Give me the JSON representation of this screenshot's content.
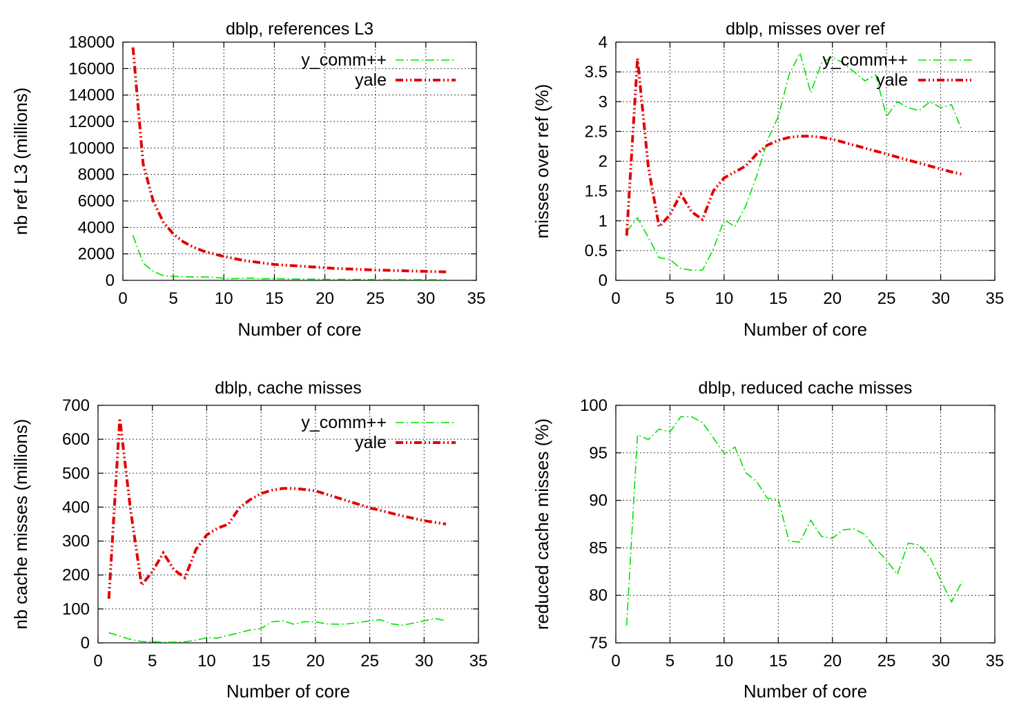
{
  "chart_data": [
    {
      "type": "line",
      "title": "dblp, references L3",
      "xlabel": "Number of core",
      "ylabel": "nb ref L3 (millions)",
      "xlim": [
        0,
        35
      ],
      "ylim": [
        0,
        18000
      ],
      "xticks": [
        "0",
        "5",
        "10",
        "15",
        "20",
        "25",
        "30",
        "35"
      ],
      "yticks": [
        "0",
        "2000",
        "4000",
        "6000",
        "8000",
        "10000",
        "12000",
        "14000",
        "16000",
        "18000"
      ],
      "grid": true,
      "legend_position": "top-right",
      "series": [
        {
          "name": "y_comm++",
          "color": "#00e000",
          "x": [
            1,
            2,
            3,
            4,
            5,
            6,
            7,
            8,
            9,
            10,
            11,
            12,
            13,
            14,
            15,
            16,
            17,
            18,
            19,
            20,
            21,
            22,
            23,
            24,
            25,
            26,
            27,
            28,
            29,
            30,
            31,
            32
          ],
          "y": [
            3400,
            1300,
            700,
            350,
            300,
            280,
            250,
            260,
            220,
            150,
            130,
            180,
            150,
            120,
            140,
            110,
            100,
            90,
            95,
            80,
            80,
            75,
            70,
            70,
            65,
            60,
            60,
            55,
            55,
            50,
            50,
            45
          ]
        },
        {
          "name": "yale",
          "color": "#e00000",
          "x": [
            1,
            2,
            3,
            4,
            5,
            6,
            7,
            8,
            9,
            10,
            11,
            12,
            13,
            14,
            15,
            16,
            17,
            18,
            19,
            20,
            21,
            22,
            23,
            24,
            25,
            26,
            27,
            28,
            29,
            30,
            31,
            32
          ],
          "y": [
            17600,
            8800,
            6000,
            4400,
            3500,
            2900,
            2500,
            2200,
            2000,
            1800,
            1650,
            1500,
            1400,
            1300,
            1200,
            1150,
            1100,
            1050,
            1000,
            950,
            900,
            870,
            840,
            810,
            780,
            760,
            740,
            720,
            700,
            680,
            660,
            640
          ]
        }
      ]
    },
    {
      "type": "line",
      "title": "dblp, misses over ref",
      "xlabel": "Number of core",
      "ylabel": "misses over ref (%)",
      "xlim": [
        0,
        35
      ],
      "ylim": [
        0,
        4
      ],
      "xticks": [
        "0",
        "5",
        "10",
        "15",
        "20",
        "25",
        "30",
        "35"
      ],
      "yticks": [
        "0",
        "0.5",
        "1",
        "1.5",
        "2",
        "2.5",
        "3",
        "3.5",
        "4"
      ],
      "grid": true,
      "legend_position": "top-right",
      "series": [
        {
          "name": "y_comm++",
          "color": "#00e000",
          "x": [
            1,
            2,
            3,
            4,
            5,
            6,
            7,
            8,
            9,
            10,
            11,
            12,
            13,
            14,
            15,
            16,
            17,
            18,
            19,
            20,
            21,
            22,
            23,
            24,
            25,
            26,
            27,
            28,
            29,
            30,
            31,
            32
          ],
          "y": [
            0.82,
            1.05,
            0.72,
            0.38,
            0.35,
            0.2,
            0.17,
            0.17,
            0.52,
            1.02,
            0.9,
            1.25,
            1.75,
            2.35,
            2.75,
            3.45,
            3.82,
            3.15,
            3.65,
            3.75,
            3.65,
            3.5,
            3.35,
            3.45,
            2.75,
            3.0,
            2.9,
            2.85,
            3.0,
            2.9,
            2.95,
            2.5
          ]
        },
        {
          "name": "yale",
          "color": "#e00000",
          "x": [
            1,
            2,
            3,
            4,
            5,
            6,
            7,
            8,
            9,
            10,
            11,
            12,
            13,
            14,
            15,
            16,
            17,
            18,
            19,
            20,
            21,
            22,
            23,
            24,
            25,
            26,
            27,
            28,
            29,
            30,
            31,
            32
          ],
          "y": [
            0.75,
            3.73,
            1.9,
            0.9,
            1.1,
            1.45,
            1.15,
            1.02,
            1.5,
            1.72,
            1.82,
            1.92,
            2.12,
            2.27,
            2.35,
            2.4,
            2.42,
            2.42,
            2.4,
            2.37,
            2.32,
            2.27,
            2.22,
            2.17,
            2.12,
            2.07,
            2.02,
            1.97,
            1.92,
            1.87,
            1.82,
            1.78
          ]
        }
      ]
    },
    {
      "type": "line",
      "title": "dblp, cache misses",
      "xlabel": "Number of core",
      "ylabel": "nb cache misses (millions)",
      "xlim": [
        0,
        35
      ],
      "ylim": [
        0,
        700
      ],
      "xticks": [
        "0",
        "5",
        "10",
        "15",
        "20",
        "25",
        "30",
        "35"
      ],
      "yticks": [
        "0",
        "100",
        "200",
        "300",
        "400",
        "500",
        "600",
        "700"
      ],
      "grid": true,
      "legend_position": "top-right",
      "series": [
        {
          "name": "y_comm++",
          "color": "#00e000",
          "x": [
            1,
            2,
            3,
            4,
            5,
            6,
            7,
            8,
            9,
            10,
            11,
            12,
            13,
            14,
            15,
            16,
            17,
            18,
            19,
            20,
            21,
            22,
            23,
            24,
            25,
            26,
            27,
            28,
            29,
            30,
            31,
            32
          ],
          "y": [
            30,
            20,
            10,
            4,
            3,
            2,
            2,
            3,
            8,
            15,
            14,
            22,
            30,
            38,
            42,
            62,
            65,
            55,
            62,
            62,
            56,
            55,
            56,
            60,
            65,
            68,
            56,
            52,
            58,
            65,
            72,
            65
          ]
        },
        {
          "name": "yale",
          "color": "#e00000",
          "x": [
            1,
            2,
            3,
            4,
            5,
            6,
            7,
            8,
            9,
            10,
            11,
            12,
            13,
            14,
            15,
            16,
            17,
            18,
            19,
            20,
            21,
            22,
            23,
            24,
            25,
            26,
            27,
            28,
            29,
            30,
            31,
            32
          ],
          "y": [
            130,
            662,
            390,
            170,
            210,
            265,
            215,
            192,
            275,
            318,
            338,
            350,
            398,
            422,
            440,
            450,
            455,
            455,
            452,
            448,
            438,
            428,
            418,
            408,
            398,
            390,
            382,
            374,
            367,
            360,
            355,
            350
          ]
        }
      ]
    },
    {
      "type": "line",
      "title": "dblp, reduced cache misses",
      "xlabel": "Number of core",
      "ylabel": "reduced cache misses (%)",
      "xlim": [
        0,
        35
      ],
      "ylim": [
        75,
        100
      ],
      "xticks": [
        "0",
        "5",
        "10",
        "15",
        "20",
        "25",
        "30",
        "35"
      ],
      "yticks": [
        "75",
        "80",
        "85",
        "90",
        "95",
        "100"
      ],
      "grid": true,
      "legend_position": "none",
      "series": [
        {
          "name": "",
          "color": "#00e000",
          "x": [
            1,
            2,
            3,
            4,
            5,
            6,
            7,
            8,
            9,
            10,
            11,
            12,
            13,
            14,
            15,
            16,
            17,
            18,
            19,
            20,
            21,
            22,
            23,
            24,
            25,
            26,
            27,
            28,
            29,
            30,
            31,
            32
          ],
          "y": [
            76.8,
            96.9,
            96.4,
            97.5,
            97.2,
            98.8,
            98.8,
            98.2,
            96.6,
            94.9,
            95.6,
            92.9,
            92.0,
            90.2,
            90.1,
            85.7,
            85.6,
            87.9,
            86.2,
            86.0,
            86.9,
            87.0,
            86.4,
            84.9,
            83.7,
            82.2,
            85.5,
            85.3,
            84.0,
            81.6,
            79.3,
            81.5
          ]
        }
      ]
    }
  ]
}
